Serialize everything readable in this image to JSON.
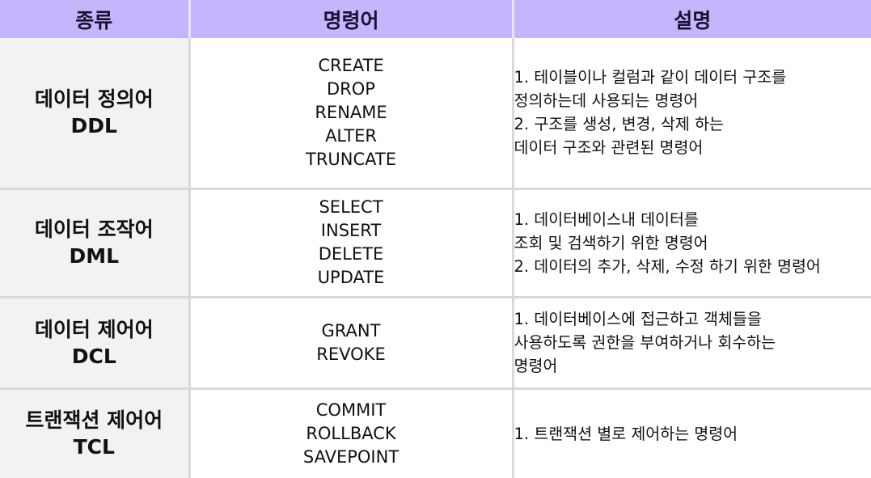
{
  "header": {
    "type": "종류",
    "command": "명령어",
    "description": "설명"
  },
  "rows": [
    {
      "type_name": "데이터 정의어",
      "type_abbr": "DDL",
      "commands": [
        "CREATE",
        "DROP",
        "RENAME",
        "ALTER",
        "TRUNCATE"
      ],
      "description": [
        "1. 테이블이나 컬럼과 같이 데이터 구조를",
        "정의하는데 사용되는 명령어",
        "2. 구조를 생성, 변경, 삭제 하는",
        "데이터 구조와 관련된 명령어"
      ]
    },
    {
      "type_name": "데이터 조작어",
      "type_abbr": "DML",
      "commands": [
        "SELECT",
        "INSERT",
        "DELETE",
        "UPDATE"
      ],
      "description": [
        "1. 데이터베이스내 데이터를",
        "조회 및 검색하기 위한 명령어",
        "2. 데이터의 추가, 삭제, 수정 하기 위한 명령어"
      ]
    },
    {
      "type_name": "데이터 제어어",
      "type_abbr": "DCL",
      "commands": [
        "GRANT",
        "REVOKE"
      ],
      "description": [
        "1. 데이터베이스에 접근하고 객체들을",
        "사용하도록 권한을 부여하거나 회수하는",
        "명령어"
      ]
    },
    {
      "type_name": "트랜잭션 제어어",
      "type_abbr": "TCL",
      "commands": [
        "COMMIT",
        "ROLLBACK",
        "SAVEPOINT"
      ],
      "description": [
        "1. 트랜잭션 별로 제어하는 명령어"
      ]
    }
  ]
}
